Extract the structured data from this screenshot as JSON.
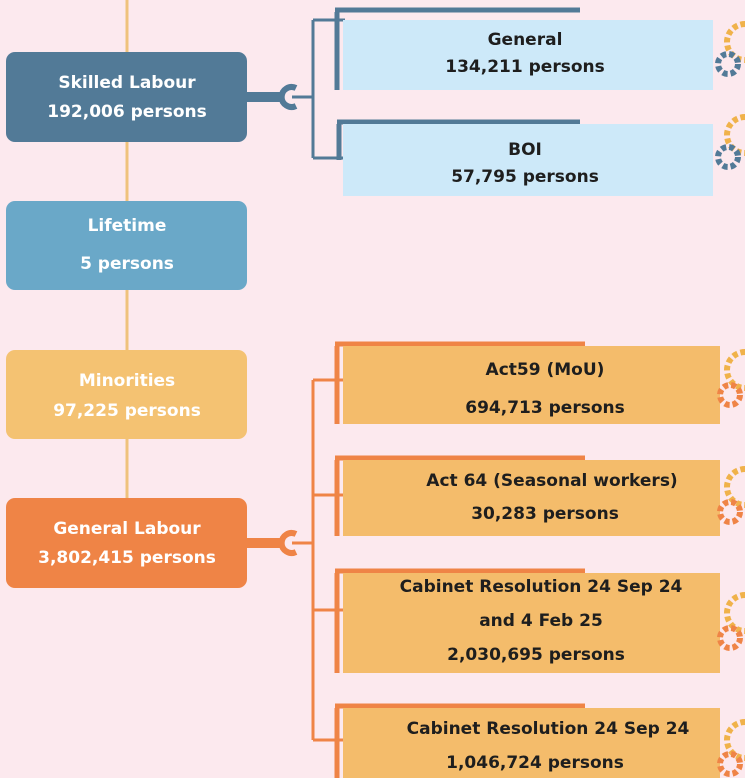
{
  "nodes": [
    {
      "title": "Skilled Labour",
      "count": "192,006 persons"
    },
    {
      "title": "Lifetime",
      "count": "5 persons"
    },
    {
      "title": "Minorities",
      "count": "97,225 persons"
    },
    {
      "title": "General Labour",
      "count": "3,802,415 persons"
    }
  ],
  "branches": [
    {
      "lines": [
        "General"
      ],
      "count": "134,211 persons"
    },
    {
      "lines": [
        "BOI"
      ],
      "count": "57,795 persons"
    },
    {
      "lines": [
        "Act59 (MoU)"
      ],
      "count": "694,713 persons"
    },
    {
      "lines": [
        "Act 64 (Seasonal workers)"
      ],
      "count": "30,283 persons"
    },
    {
      "lines": [
        "Cabinet Resolution 24 Sep 24",
        "and 4 Feb 25"
      ],
      "count": "2,030,695 persons"
    },
    {
      "lines": [
        "Cabinet Resolution 24 Sep 24"
      ],
      "count": "1,046,724 persons"
    }
  ]
}
